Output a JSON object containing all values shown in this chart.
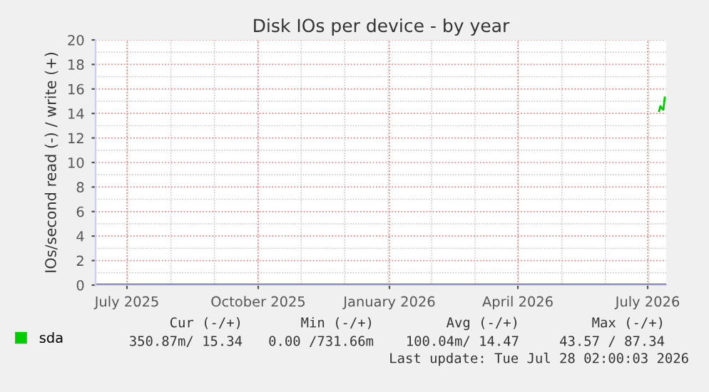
{
  "chart_data": {
    "type": "line",
    "title": "Disk IOs per device - by year",
    "ylabel": "IOs/second read (-) / write (+)",
    "xlim": [
      "2025-06-09",
      "2026-07-14"
    ],
    "xticks": [
      {
        "value": "2025-07-01",
        "label": "July 2025"
      },
      {
        "value": "2025-10-01",
        "label": "October 2025"
      },
      {
        "value": "2026-01-01",
        "label": "January 2026"
      },
      {
        "value": "2026-04-01",
        "label": "April 2026"
      },
      {
        "value": "2026-07-01",
        "label": "July 2026"
      }
    ],
    "ylim": [
      0,
      20
    ],
    "yticks": [
      0,
      2,
      4,
      6,
      8,
      10,
      12,
      14,
      16,
      18,
      20
    ],
    "grid": true,
    "legend": "bottom left",
    "series": [
      {
        "name": "sda",
        "color": "#00cc00",
        "x": [
          "2026-07-09",
          "2026-07-10",
          "2026-07-11",
          "2026-07-12",
          "2026-07-13"
        ],
        "values": [
          14.2,
          14.6,
          14.4,
          14.3,
          15.3
        ]
      }
    ],
    "annotations": [
      "Cur (-/+)",
      "Min (-/+)",
      "Avg (-/+)",
      "Max (-/+)",
      "350.87m/ 15.34",
      "0.00 /731.66m",
      "100.04m/ 14.47",
      "43.57 / 87.34",
      "Last update: Tue Jul 28 02:00:03 2026"
    ]
  }
}
